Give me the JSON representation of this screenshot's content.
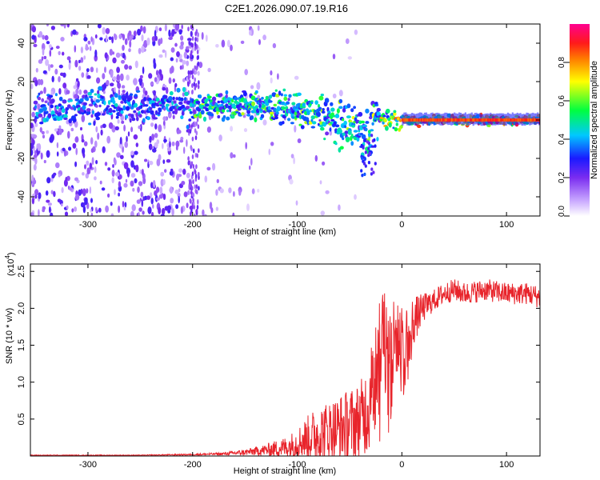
{
  "title": "C2E1.2026.090.07.19.R16",
  "chart_data": [
    {
      "type": "heatmap",
      "xlabel": "Height of straight line (km)",
      "ylabel": "Frequency (Hz)",
      "xlim": [
        -355,
        132
      ],
      "ylim": [
        -50,
        50
      ],
      "xticks": [
        -300,
        -200,
        -100,
        0,
        100
      ],
      "yticks": [
        -40,
        -20,
        0,
        20,
        40
      ],
      "colorbar": {
        "label": "Normalized spectral amplitude",
        "range": [
          0,
          1
        ],
        "ticks": [
          "0.0",
          "0.2",
          "0.4",
          "0.6",
          "0.8"
        ],
        "tick_values": [
          0,
          0.2,
          0.4,
          0.6,
          0.8
        ],
        "stops": [
          "#ffffff",
          "#9b5cff",
          "#2020ff",
          "#00c8ff",
          "#00ff40",
          "#ffff00",
          "#ff2020",
          "#ff00a0"
        ]
      },
      "trace": {
        "x": [
          -350,
          -300,
          -250,
          -200,
          -175,
          -150,
          -125,
          -100,
          -80,
          -60,
          -45,
          -35,
          -30,
          -25,
          -20,
          -10,
          0,
          50,
          100,
          132
        ],
        "center_hz": [
          6,
          7,
          8,
          7,
          8,
          8,
          7,
          5,
          2,
          -1,
          -4,
          -6,
          -8,
          0,
          1,
          1,
          0,
          0,
          0,
          0
        ]
      }
    },
    {
      "type": "line",
      "xlabel": "Height of straight line (km)",
      "ylabel": "SNR (10 * v/v)",
      "multiplier_text": "(x10",
      "multiplier_exp": "4",
      "multiplier_close": ")",
      "xlim": [
        -355,
        132
      ],
      "ylim": [
        0,
        2.6
      ],
      "xticks": [
        -300,
        -200,
        -100,
        0,
        100
      ],
      "yticks": [
        "0.5",
        "1.0",
        "1.5",
        "2.0",
        "2.5"
      ],
      "ytick_values": [
        0.5,
        1.0,
        1.5,
        2.0,
        2.5
      ],
      "color": "#e8242b",
      "series": [
        {
          "name": "SNR",
          "x": [
            -355,
            -300,
            -250,
            -200,
            -170,
            -150,
            -130,
            -110,
            -100,
            -90,
            -80,
            -70,
            -60,
            -50,
            -40,
            -35,
            -30,
            -25,
            -20,
            -15,
            -10,
            -5,
            0,
            5,
            10,
            20,
            30,
            40,
            50,
            60,
            80,
            100,
            120,
            132
          ],
          "y": [
            0.01,
            0.01,
            0.01,
            0.02,
            0.03,
            0.05,
            0.08,
            0.12,
            0.18,
            0.25,
            0.3,
            0.35,
            0.38,
            0.42,
            0.5,
            0.6,
            0.75,
            1.4,
            1.6,
            1.5,
            1.55,
            1.6,
            1.5,
            1.55,
            1.8,
            2.0,
            2.1,
            2.2,
            2.25,
            2.2,
            2.25,
            2.2,
            2.2,
            2.15
          ],
          "noise_amplitude": [
            0.005,
            0.005,
            0.005,
            0.01,
            0.02,
            0.04,
            0.08,
            0.15,
            0.2,
            0.3,
            0.4,
            0.4,
            0.45,
            0.5,
            0.5,
            0.6,
            0.7,
            0.8,
            0.8,
            0.7,
            0.6,
            0.5,
            0.45,
            0.4,
            0.35,
            0.2,
            0.15,
            0.15,
            0.15,
            0.15,
            0.15,
            0.15,
            0.15,
            0.15
          ]
        }
      ]
    }
  ]
}
